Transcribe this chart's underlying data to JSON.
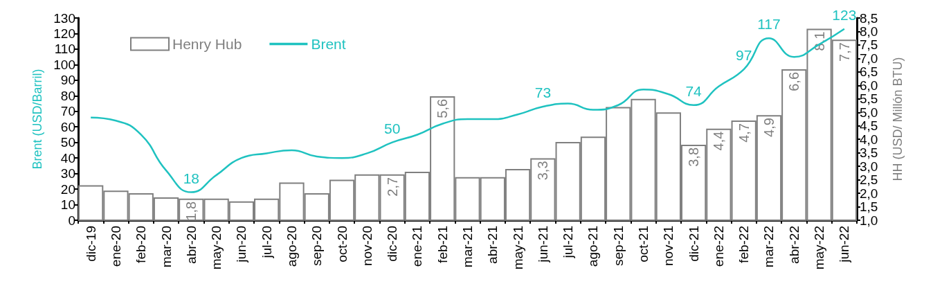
{
  "chart_data": {
    "type": "bar",
    "categories": [
      "dic-19",
      "ene-20",
      "feb-20",
      "mar-20",
      "abr-20",
      "may-20",
      "jun-20",
      "jul-20",
      "ago-20",
      "sep-20",
      "oct-20",
      "nov-20",
      "dic-20",
      "ene-21",
      "feb-21",
      "mar-21",
      "abr-21",
      "may-21",
      "jun-21",
      "jul-21",
      "ago-21",
      "sep-21",
      "oct-21",
      "nov-21",
      "dic-21",
      "ene-22",
      "feb-22",
      "mar-22",
      "abr-22",
      "may-22",
      "jun-22"
    ],
    "series": [
      {
        "name": "Henry Hub",
        "axis": "y2",
        "color": "#7f7f7f",
        "values": [
          2.3,
          2.1,
          2.0,
          1.85,
          1.8,
          1.8,
          1.7,
          1.8,
          2.4,
          2.0,
          2.5,
          2.7,
          2.7,
          2.8,
          5.6,
          2.6,
          2.6,
          2.9,
          3.3,
          3.9,
          4.1,
          5.2,
          5.5,
          5.0,
          3.8,
          4.4,
          4.7,
          4.9,
          6.6,
          8.1,
          7.7
        ],
        "value_labels": [
          null,
          null,
          null,
          null,
          "1,8",
          null,
          null,
          null,
          null,
          null,
          null,
          null,
          "2,7",
          null,
          "5,6",
          null,
          null,
          null,
          "3,3",
          null,
          null,
          null,
          null,
          null,
          "3,8",
          "4,4",
          "4,7",
          "4,9",
          "6,6",
          "8,1",
          "7,7"
        ]
      },
      {
        "name": "Brent",
        "type": "line",
        "color": "#1fc2c0",
        "values": [
          66,
          64,
          55,
          32,
          18,
          29,
          40,
          43,
          45,
          41,
          40,
          43,
          50,
          55,
          62,
          65,
          65,
          68,
          73,
          75,
          71,
          74,
          84,
          81,
          74,
          86,
          97,
          117,
          105,
          113,
          123
        ],
        "value_labels": [
          null,
          null,
          null,
          null,
          "18",
          null,
          null,
          null,
          null,
          null,
          null,
          null,
          "50",
          null,
          null,
          null,
          null,
          null,
          "73",
          null,
          null,
          null,
          null,
          null,
          "74",
          null,
          "97",
          "117",
          null,
          null,
          "123"
        ]
      }
    ],
    "ylabel": "Brent (USD/Barril)",
    "y2label": "HH (USD/ Millón BTU)",
    "ylim": [
      0,
      130
    ],
    "yticks": [
      0,
      10,
      20,
      30,
      40,
      50,
      60,
      70,
      80,
      90,
      100,
      110,
      120,
      130
    ],
    "y2lim": [
      1.0,
      8.5
    ],
    "y2ticks": [
      {
        "value": 1.0,
        "label": "1,0"
      },
      {
        "value": 1.5,
        "label": "1,5"
      },
      {
        "value": 2.0,
        "label": "2,0"
      },
      {
        "value": 2.5,
        "label": "2,5"
      },
      {
        "value": 3.0,
        "label": "3,0"
      },
      {
        "value": 3.5,
        "label": "3,5"
      },
      {
        "value": 4.0,
        "label": "4,0"
      },
      {
        "value": 4.5,
        "label": "4,5"
      },
      {
        "value": 5.0,
        "label": "5,0"
      },
      {
        "value": 5.5,
        "label": "5,5"
      },
      {
        "value": 6.0,
        "label": "6,0"
      },
      {
        "value": 6.5,
        "label": "6,5"
      },
      {
        "value": 7.0,
        "label": "7,0"
      },
      {
        "value": 7.5,
        "label": "7,5"
      },
      {
        "value": 8.0,
        "label": "8,0"
      },
      {
        "value": 8.5,
        "label": "8,5"
      }
    ],
    "legend": "top left",
    "grid": false,
    "marker": "none",
    "line_style": "solid"
  }
}
